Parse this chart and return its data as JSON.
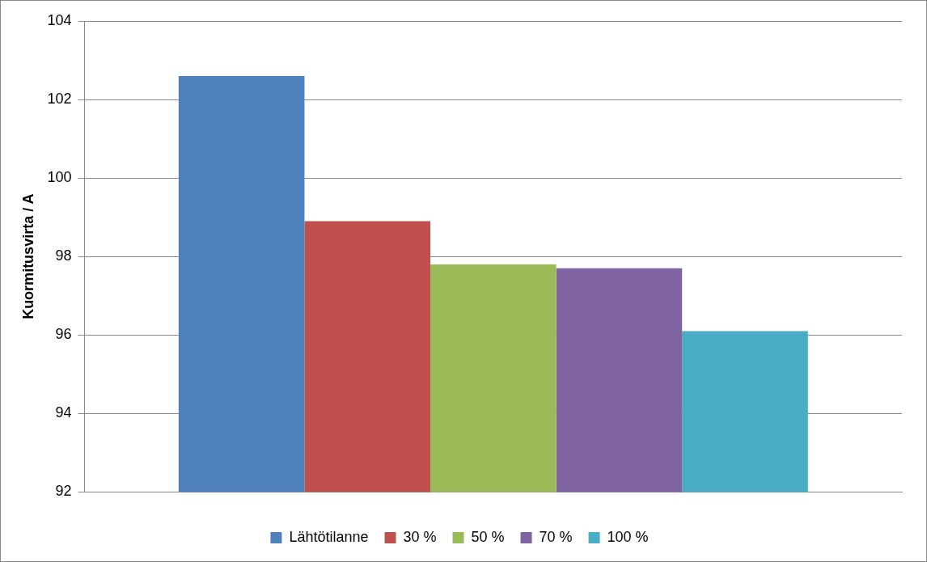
{
  "chart_data": {
    "type": "bar",
    "ylabel": "Kuormitusvirta / A",
    "categories": [
      null
    ],
    "series": [
      {
        "name": "Lähtötilanne",
        "color": "#4f81bd",
        "values": [
          102.6
        ]
      },
      {
        "name": "30 %",
        "color": "#c0504d",
        "values": [
          98.9
        ]
      },
      {
        "name": "50 %",
        "color": "#9bbb59",
        "values": [
          97.8
        ]
      },
      {
        "name": "70 %",
        "color": "#8064a2",
        "values": [
          97.7
        ]
      },
      {
        "name": "100 %",
        "color": "#4bacc6",
        "values": [
          96.1
        ]
      }
    ],
    "ylim": [
      92,
      104
    ],
    "yticks": [
      92,
      94,
      96,
      98,
      100,
      102,
      104
    ],
    "grid": "y",
    "legend": "bottom"
  }
}
